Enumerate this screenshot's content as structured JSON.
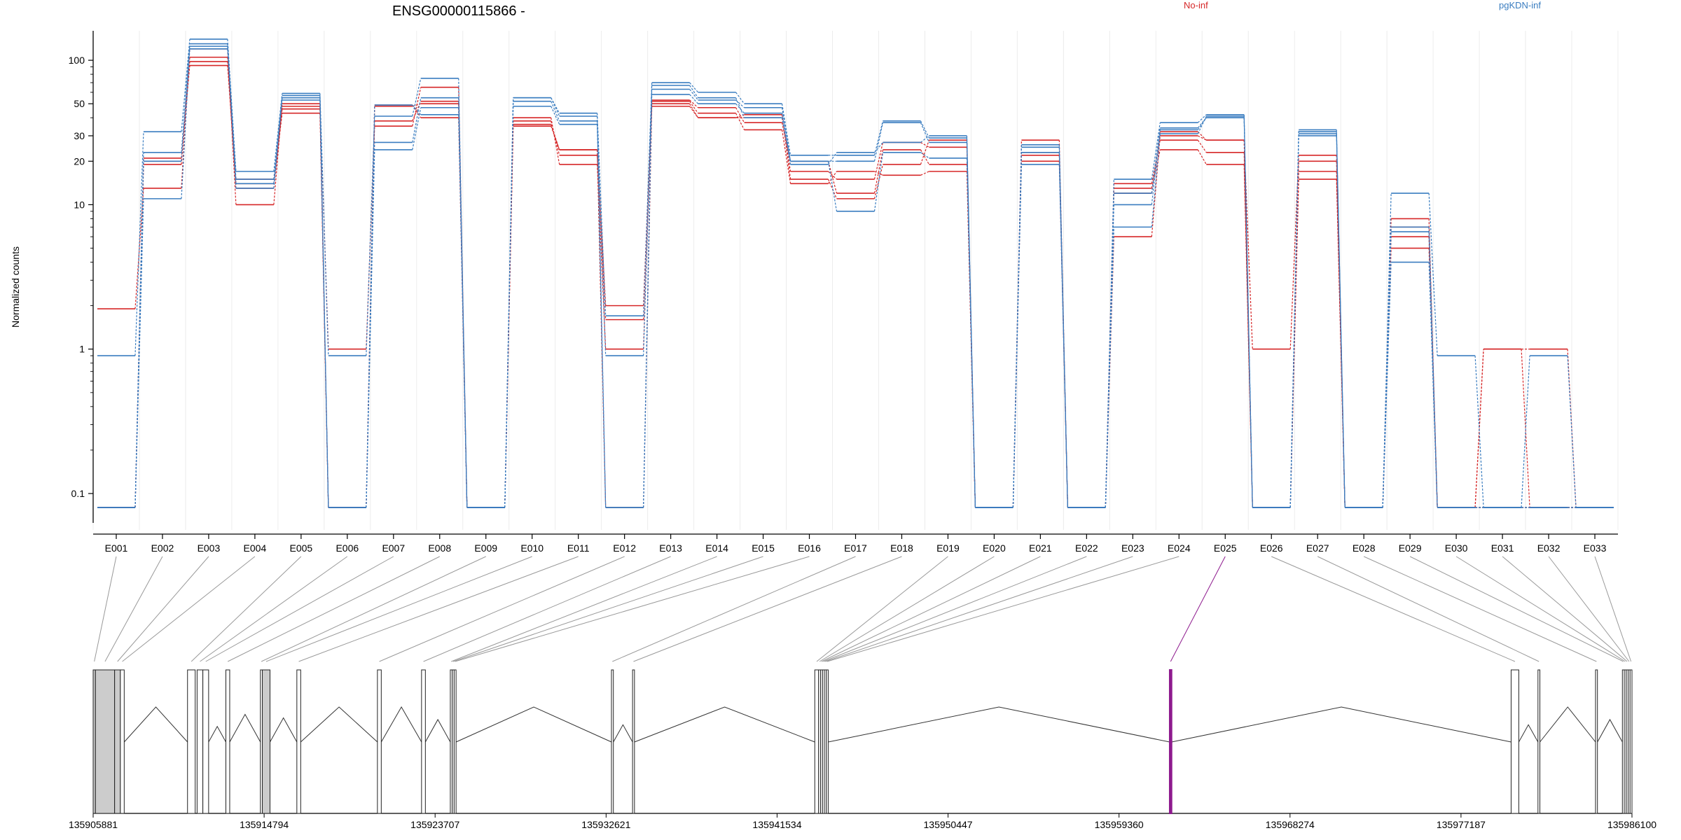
{
  "chart_data": {
    "type": "line",
    "title": "ENSG00000115866 -",
    "ylabel": "Normalized counts",
    "y_scale": "log",
    "ylim": [
      0.07,
      160
    ],
    "y_ticks": [
      0.1,
      1,
      10,
      20,
      30,
      50,
      100
    ],
    "y_tick_labels": [
      "0.1",
      "1",
      "10",
      "20",
      "30",
      "50",
      "100"
    ],
    "grid": "vertical minor",
    "legend_position": "top",
    "categories": [
      "E001",
      "E002",
      "E003",
      "E004",
      "E005",
      "E006",
      "E007",
      "E008",
      "E009",
      "E010",
      "E011",
      "E012",
      "E013",
      "E014",
      "E015",
      "E016",
      "E017",
      "E018",
      "E019",
      "E020",
      "E021",
      "E022",
      "E023",
      "E024",
      "E025",
      "E026",
      "E027",
      "E028",
      "E029",
      "E030",
      "E031",
      "E032",
      "E033"
    ],
    "colors": {
      "No-inf": "#d62728",
      "pgKDN-inf": "#3a7dc0",
      "highlight": "#8e1a8e",
      "connector": "#999999"
    },
    "series": [
      {
        "name": "No-inf",
        "values": [
          1.9,
          13,
          120,
          10,
          50,
          1,
          35,
          65,
          0.08,
          36,
          24,
          2.0,
          53,
          47,
          37,
          20,
          12,
          24,
          19,
          0.08,
          22,
          0.08,
          6,
          30,
          28,
          1,
          22,
          0.08,
          6,
          0.08,
          1,
          1,
          0.08
        ]
      },
      {
        "name": "No-inf",
        "values": [
          0.08,
          19,
          105,
          13,
          46,
          0.08,
          38,
          52,
          0.08,
          38,
          22,
          1.6,
          50,
          40,
          40,
          17,
          15,
          27,
          25,
          0.08,
          28,
          0.08,
          14,
          28,
          23,
          0.08,
          17,
          0.08,
          8,
          0.08,
          0.08,
          0.08,
          0.08
        ]
      },
      {
        "name": "No-inf",
        "values": [
          0.08,
          21,
          92,
          14,
          43,
          0.08,
          48,
          50,
          0.08,
          40,
          19,
          1.0,
          52,
          43,
          33,
          14,
          17,
          16,
          17,
          0.08,
          20,
          0.08,
          13,
          24,
          19,
          0.08,
          15,
          0.08,
          7,
          0.08,
          0.08,
          0.08,
          0.08
        ]
      },
      {
        "name": "No-inf",
        "values": [
          0.08,
          20,
          98,
          15,
          48,
          0.08,
          49,
          40,
          0.08,
          35,
          24,
          0.08,
          48,
          40,
          42,
          15,
          11,
          19,
          28,
          0.08,
          23,
          0.08,
          12,
          32,
          28,
          0.08,
          20,
          0.08,
          5,
          0.08,
          1,
          0.08,
          0.08
        ]
      },
      {
        "name": "pgKDN-inf",
        "values": [
          0.9,
          32,
          140,
          17,
          59,
          0.9,
          41,
          75,
          0.08,
          55,
          43,
          1.7,
          70,
          60,
          50,
          22,
          22,
          38,
          29,
          0.08,
          25,
          0.08,
          15,
          37,
          42,
          0.08,
          33,
          0.08,
          12,
          0.9,
          0.08,
          0.9,
          0.08
        ]
      },
      {
        "name": "pgKDN-inf",
        "values": [
          0.08,
          23,
          130,
          15,
          57,
          0.08,
          27,
          55,
          0.08,
          52,
          38,
          0.9,
          63,
          53,
          47,
          20,
          20,
          37,
          27,
          0.08,
          23,
          0.08,
          12,
          34,
          40,
          0.08,
          31,
          0.08,
          7,
          0.08,
          0.08,
          0.08,
          0.08
        ]
      },
      {
        "name": "pgKDN-inf",
        "values": [
          0.08,
          11,
          120,
          14,
          55,
          0.08,
          24,
          47,
          0.08,
          48,
          36,
          0.08,
          58,
          50,
          43,
          20,
          9,
          23,
          21,
          0.08,
          19,
          0.08,
          10,
          33,
          40,
          0.08,
          30,
          0.08,
          4,
          0.08,
          0.08,
          0.08,
          0.08
        ]
      },
      {
        "name": "pgKDN-inf",
        "values": [
          0.08,
          20,
          125,
          13,
          53,
          0.08,
          49,
          42,
          0.08,
          55,
          41,
          0.08,
          67,
          55,
          40,
          19,
          23,
          27,
          30,
          0.08,
          26,
          0.08,
          7,
          31,
          41,
          0.08,
          32,
          0.08,
          6.5,
          0.08,
          0.08,
          0.08,
          0.08
        ]
      }
    ],
    "highlight_exon_index": 24,
    "genomic_axis": {
      "range": [
        135905881,
        135986100
      ],
      "ticks": [
        135905881,
        135914794,
        135923707,
        135932621,
        135941534,
        135950447,
        135959360,
        135968274,
        135977187,
        135986100
      ],
      "tick_labels": [
        "135905881",
        "135914794",
        "135923707",
        "135932621",
        "135941534",
        "135950447",
        "135959360",
        "135968274",
        "135977187",
        "135986100"
      ]
    },
    "exons": [
      {
        "id": "E001",
        "start": 135905881,
        "end": 135906000,
        "shaded": true
      },
      {
        "id": "E002",
        "start": 135906000,
        "end": 135907000,
        "shaded": true
      },
      {
        "id": "E003",
        "start": 135907000,
        "end": 135907300,
        "shaded": true
      },
      {
        "id": "E004",
        "start": 135907300,
        "end": 135907500,
        "shaded": false
      },
      {
        "id": "E005",
        "start": 135910800,
        "end": 135911200,
        "shaded": false
      },
      {
        "id": "E006",
        "start": 135911300,
        "end": 135911600,
        "shaded": false
      },
      {
        "id": "E007",
        "start": 135911600,
        "end": 135911900,
        "shaded": false
      },
      {
        "id": "E008",
        "start": 135912800,
        "end": 135913000,
        "shaded": false
      },
      {
        "id": "E009",
        "start": 135914600,
        "end": 135914700,
        "shaded": false
      },
      {
        "id": "E010",
        "start": 135914700,
        "end": 135915100,
        "shaded": true
      },
      {
        "id": "E011",
        "start": 135916500,
        "end": 135916700,
        "shaded": false
      },
      {
        "id": "E012",
        "start": 135920700,
        "end": 135920900,
        "shaded": false
      },
      {
        "id": "E013",
        "start": 135923000,
        "end": 135923200,
        "shaded": false
      },
      {
        "id": "E014",
        "start": 135924500,
        "end": 135924600,
        "shaded": false
      },
      {
        "id": "E015",
        "start": 135924600,
        "end": 135924700,
        "shaded": false
      },
      {
        "id": "E016",
        "start": 135924700,
        "end": 135924800,
        "shaded": false
      },
      {
        "id": "E017",
        "start": 135932900,
        "end": 135933000,
        "shaded": false
      },
      {
        "id": "E018",
        "start": 135934000,
        "end": 135934100,
        "shaded": false
      },
      {
        "id": "E019",
        "start": 135943500,
        "end": 135943700,
        "shaded": false
      },
      {
        "id": "E020",
        "start": 135943700,
        "end": 135943800,
        "shaded": false
      },
      {
        "id": "E021",
        "start": 135943800,
        "end": 135943900,
        "shaded": false
      },
      {
        "id": "E022",
        "start": 135943900,
        "end": 135944000,
        "shaded": false
      },
      {
        "id": "E023",
        "start": 135944000,
        "end": 135944100,
        "shaded": false
      },
      {
        "id": "E024",
        "start": 135944100,
        "end": 135944200,
        "shaded": false
      },
      {
        "id": "E025",
        "start": 135962000,
        "end": 135962100,
        "shaded": false
      },
      {
        "id": "E026",
        "start": 135979800,
        "end": 135980200,
        "shaded": false
      },
      {
        "id": "E027",
        "start": 135981200,
        "end": 135981300,
        "shaded": false
      },
      {
        "id": "E028",
        "start": 135984200,
        "end": 135984300,
        "shaded": false
      },
      {
        "id": "E029",
        "start": 135985600,
        "end": 135985700,
        "shaded": false
      },
      {
        "id": "E030",
        "start": 135985700,
        "end": 135985800,
        "shaded": false
      },
      {
        "id": "E031",
        "start": 135985800,
        "end": 135985900,
        "shaded": false
      },
      {
        "id": "E032",
        "start": 135985900,
        "end": 135986000,
        "shaded": false
      },
      {
        "id": "E033",
        "start": 135986000,
        "end": 135986100,
        "shaded": false
      }
    ]
  }
}
